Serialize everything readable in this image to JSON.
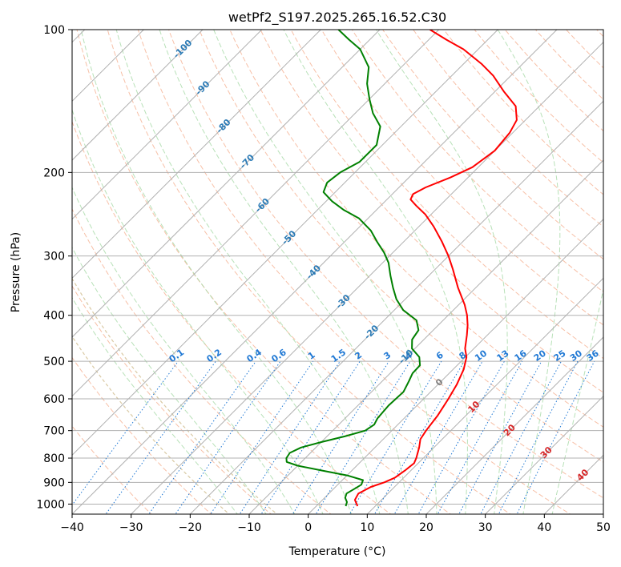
{
  "chart_data": {
    "type": "line",
    "title": "wetPf2_S197.2025.265.16.52.C30",
    "xlabel": "Temperature (°C)",
    "ylabel": "Pressure (hPa)",
    "x_axis": {
      "scale": "linear",
      "range": [
        -40,
        50
      ],
      "ticks": [
        -40,
        -30,
        -20,
        -10,
        0,
        10,
        20,
        30,
        40,
        50
      ]
    },
    "y_axis": {
      "scale": "log",
      "inverted": true,
      "range": [
        1050,
        100
      ],
      "ticks": [
        100,
        200,
        300,
        400,
        500,
        600,
        700,
        800,
        900,
        1000
      ]
    },
    "grid": true,
    "skew_t": true,
    "series": [
      {
        "color": "#ff0000",
        "points": [
          {
            "p": 1010,
            "t": 7.0
          },
          {
            "p": 980,
            "t": 5.5
          },
          {
            "p": 950,
            "t": 5.0
          },
          {
            "p": 920,
            "t": 6.0
          },
          {
            "p": 900,
            "t": 7.5
          },
          {
            "p": 880,
            "t": 8.5
          },
          {
            "p": 850,
            "t": 9.0
          },
          {
            "p": 820,
            "t": 9.3
          },
          {
            "p": 800,
            "t": 8.8
          },
          {
            "p": 760,
            "t": 7.5
          },
          {
            "p": 730,
            "t": 6.3
          },
          {
            "p": 700,
            "t": 5.8
          },
          {
            "p": 650,
            "t": 5.2
          },
          {
            "p": 600,
            "t": 4.2
          },
          {
            "p": 560,
            "t": 3.2
          },
          {
            "p": 520,
            "t": 1.8
          },
          {
            "p": 490,
            "t": 0.2
          },
          {
            "p": 470,
            "t": -1.5
          },
          {
            "p": 440,
            "t": -3.5
          },
          {
            "p": 420,
            "t": -5.0
          },
          {
            "p": 400,
            "t": -6.8
          },
          {
            "p": 380,
            "t": -9.0
          },
          {
            "p": 350,
            "t": -13.0
          },
          {
            "p": 320,
            "t": -17.0
          },
          {
            "p": 300,
            "t": -20.0
          },
          {
            "p": 280,
            "t": -23.5
          },
          {
            "p": 260,
            "t": -27.5
          },
          {
            "p": 245,
            "t": -31.0
          },
          {
            "p": 235,
            "t": -34.0
          },
          {
            "p": 228,
            "t": -36.0
          },
          {
            "p": 222,
            "t": -36.5
          },
          {
            "p": 215,
            "t": -35.5
          },
          {
            "p": 205,
            "t": -33.0
          },
          {
            "p": 195,
            "t": -31.0
          },
          {
            "p": 180,
            "t": -30.0
          },
          {
            "p": 165,
            "t": -30.5
          },
          {
            "p": 155,
            "t": -31.5
          },
          {
            "p": 145,
            "t": -34.0
          },
          {
            "p": 135,
            "t": -38.5
          },
          {
            "p": 125,
            "t": -43.0
          },
          {
            "p": 118,
            "t": -47.0
          },
          {
            "p": 110,
            "t": -52.5
          },
          {
            "p": 105,
            "t": -57.0
          },
          {
            "p": 100,
            "t": -61.5
          }
        ]
      },
      {
        "color": "#008000",
        "points": [
          {
            "p": 1010,
            "t": 5.0
          },
          {
            "p": 990,
            "t": 4.5
          },
          {
            "p": 970,
            "t": 3.5
          },
          {
            "p": 950,
            "t": 3.0
          },
          {
            "p": 930,
            "t": 3.5
          },
          {
            "p": 910,
            "t": 4.0
          },
          {
            "p": 890,
            "t": 3.5
          },
          {
            "p": 870,
            "t": 0.0
          },
          {
            "p": 850,
            "t": -5.0
          },
          {
            "p": 830,
            "t": -10.0
          },
          {
            "p": 815,
            "t": -12.5
          },
          {
            "p": 800,
            "t": -13.2
          },
          {
            "p": 780,
            "t": -13.5
          },
          {
            "p": 760,
            "t": -12.5
          },
          {
            "p": 740,
            "t": -10.0
          },
          {
            "p": 720,
            "t": -7.0
          },
          {
            "p": 700,
            "t": -4.5
          },
          {
            "p": 680,
            "t": -4.0
          },
          {
            "p": 660,
            "t": -4.5
          },
          {
            "p": 620,
            "t": -4.8
          },
          {
            "p": 580,
            "t": -4.6
          },
          {
            "p": 550,
            "t": -5.5
          },
          {
            "p": 530,
            "t": -6.2
          },
          {
            "p": 510,
            "t": -6.3
          },
          {
            "p": 490,
            "t": -7.8
          },
          {
            "p": 470,
            "t": -10.5
          },
          {
            "p": 450,
            "t": -12.0
          },
          {
            "p": 430,
            "t": -12.5
          },
          {
            "p": 410,
            "t": -14.5
          },
          {
            "p": 390,
            "t": -18.5
          },
          {
            "p": 370,
            "t": -21.5
          },
          {
            "p": 350,
            "t": -24.0
          },
          {
            "p": 330,
            "t": -26.5
          },
          {
            "p": 310,
            "t": -29.0
          },
          {
            "p": 295,
            "t": -31.5
          },
          {
            "p": 280,
            "t": -34.5
          },
          {
            "p": 265,
            "t": -37.5
          },
          {
            "p": 250,
            "t": -41.5
          },
          {
            "p": 240,
            "t": -45.5
          },
          {
            "p": 230,
            "t": -49.0
          },
          {
            "p": 220,
            "t": -52.0
          },
          {
            "p": 210,
            "t": -53.0
          },
          {
            "p": 200,
            "t": -52.5
          },
          {
            "p": 190,
            "t": -51.0
          },
          {
            "p": 175,
            "t": -51.0
          },
          {
            "p": 160,
            "t": -53.5
          },
          {
            "p": 150,
            "t": -57.0
          },
          {
            "p": 140,
            "t": -60.0
          },
          {
            "p": 130,
            "t": -63.0
          },
          {
            "p": 120,
            "t": -65.5
          },
          {
            "p": 110,
            "t": -70.0
          },
          {
            "p": 105,
            "t": -73.5
          },
          {
            "p": 100,
            "t": -77.0
          }
        ]
      }
    ],
    "isotherms_labels": [
      {
        "value": "-100",
        "color": "#2c7bb6"
      },
      {
        "value": "-90",
        "color": "#2c7bb6"
      },
      {
        "value": "-80",
        "color": "#2c7bb6"
      },
      {
        "value": "-70",
        "color": "#2c7bb6"
      },
      {
        "value": "-60",
        "color": "#2c7bb6"
      },
      {
        "value": "-50",
        "color": "#2c7bb6"
      },
      {
        "value": "-40",
        "color": "#2c7bb6"
      },
      {
        "value": "-30",
        "color": "#2c7bb6"
      },
      {
        "value": "-20",
        "color": "#2c7bb6"
      },
      {
        "value": "-10",
        "color": "#2c7bb6"
      },
      {
        "value": "0",
        "color": "#808080"
      },
      {
        "value": "10",
        "color": "#d62728"
      },
      {
        "value": "20",
        "color": "#d62728"
      },
      {
        "value": "30",
        "color": "#d62728"
      },
      {
        "value": "40",
        "color": "#d62728"
      }
    ],
    "mixing_ratio_labels": [
      "0.1",
      "0.2",
      "0.4",
      "0.6",
      "1",
      "1.5",
      "2",
      "3",
      "4",
      "6",
      "8",
      "10",
      "13",
      "16",
      "20",
      "25",
      "30",
      "36"
    ],
    "colors": {
      "temperature": "#ff0000",
      "dewpoint": "#008000",
      "isotherm_grid": "#b0b0b0",
      "dry_adiabat": "#f4a582",
      "moist_adiabat": "#a6d9a6",
      "mixing_ratio": "#1f78d4",
      "ice_line": "#d9c9a3"
    }
  }
}
